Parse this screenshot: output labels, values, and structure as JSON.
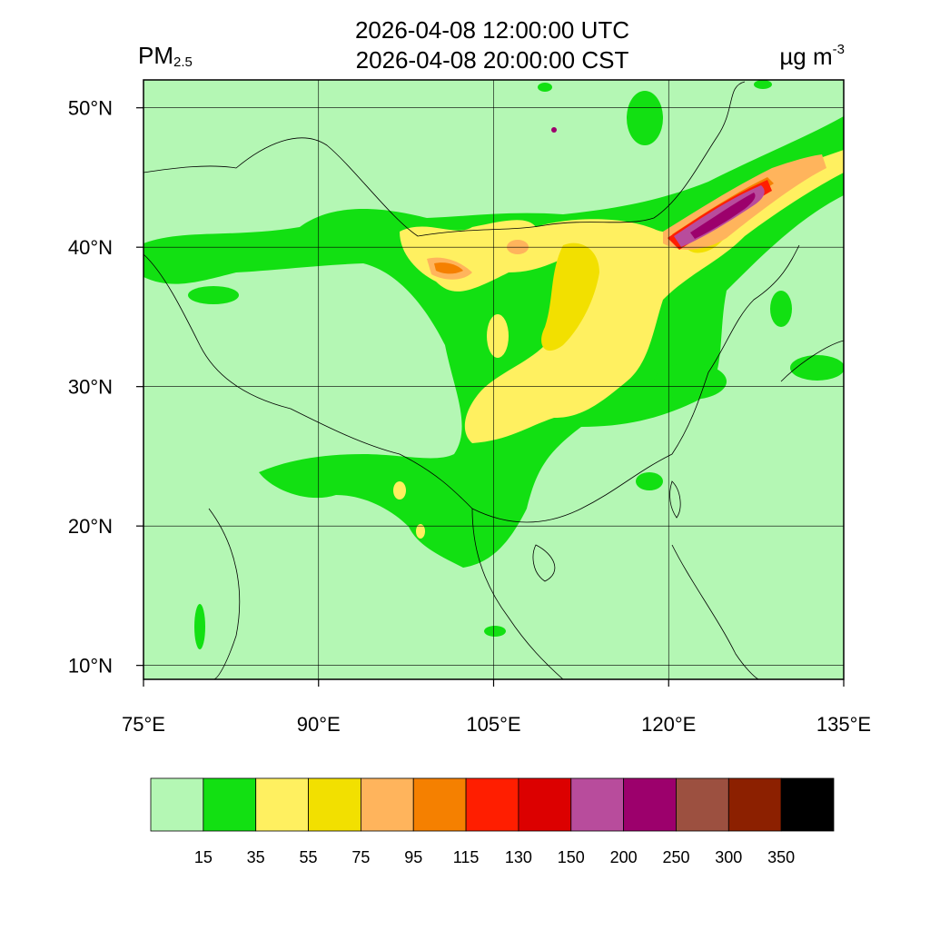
{
  "title": {
    "utc": "2026-04-08 12:00:00 UTC",
    "local": "2026-04-08 20:00:00 CST"
  },
  "variable": {
    "name": "PM",
    "subscript": "2.5"
  },
  "units": {
    "base": "µg m",
    "exponent": "-3"
  },
  "map": {
    "lon_range": [
      75,
      135
    ],
    "lat_range": [
      9,
      52
    ],
    "lon_ticks": [
      {
        "value": 75,
        "label": "75°E"
      },
      {
        "value": 90,
        "label": "90°E"
      },
      {
        "value": 105,
        "label": "105°E"
      },
      {
        "value": 120,
        "label": "120°E"
      },
      {
        "value": 135,
        "label": "135°E"
      }
    ],
    "lat_ticks": [
      {
        "value": 10,
        "label": "10°N"
      },
      {
        "value": 20,
        "label": "20°N"
      },
      {
        "value": 30,
        "label": "30°N"
      },
      {
        "value": 40,
        "label": "40°N"
      },
      {
        "value": 50,
        "label": "50°N"
      }
    ],
    "background_color": "#b4f7b4"
  },
  "colorbar": {
    "colors": [
      "#b4f7b4",
      "#12e012",
      "#fff060",
      "#f2e000",
      "#ffb45c",
      "#f58000",
      "#ff1e00",
      "#dc0000",
      "#b84c9c",
      "#9c006c",
      "#9c5040",
      "#8c2000",
      "#000000"
    ],
    "labels": [
      "15",
      "35",
      "55",
      "75",
      "95",
      "115",
      "130",
      "150",
      "200",
      "250",
      "300",
      "350"
    ]
  }
}
